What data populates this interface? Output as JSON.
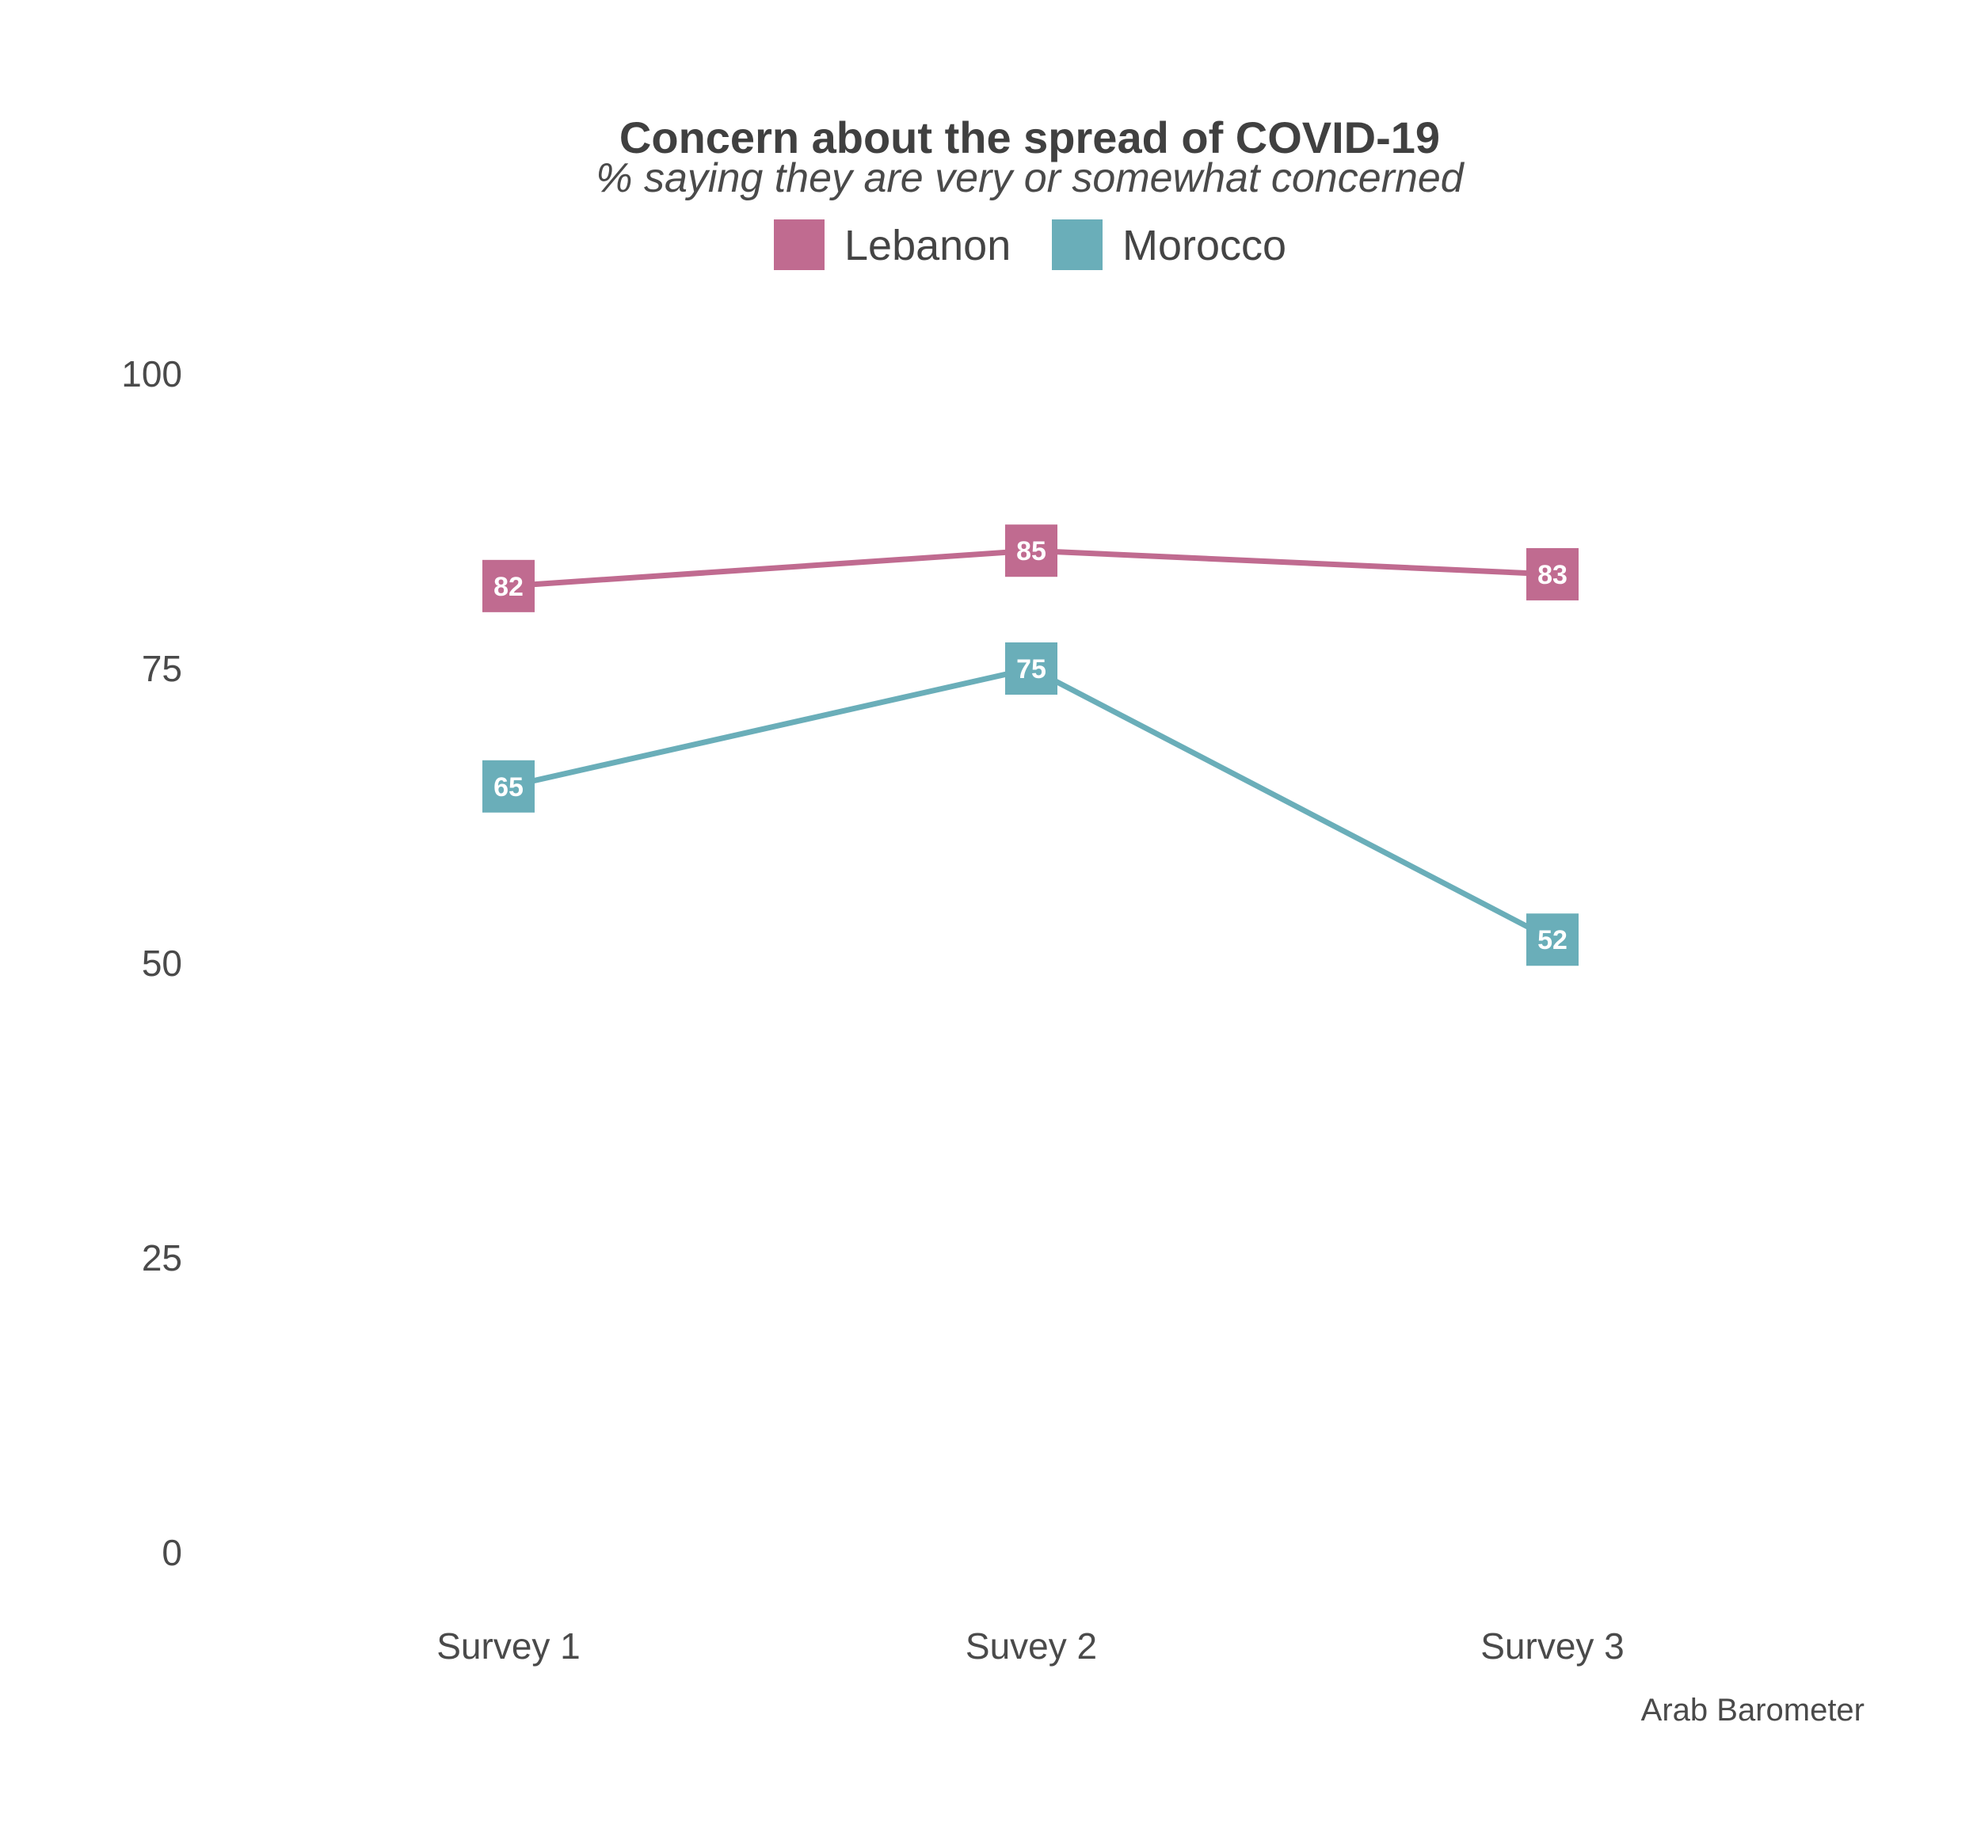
{
  "chart_data": {
    "type": "line",
    "title": "Concern about the spread of COVID-19",
    "subtitle": "% saying they are very or somewhat concerned",
    "categories": [
      "Survey 1",
      "Suvey 2",
      "Survey 3"
    ],
    "series": [
      {
        "name": "Lebanon",
        "color": "#c06b90",
        "values": [
          82,
          85,
          83
        ]
      },
      {
        "name": "Morocco",
        "color": "#6aaeb9",
        "values": [
          65,
          75,
          52
        ]
      }
    ],
    "y_ticks": [
      0,
      25,
      50,
      75,
      100
    ],
    "ylim": [
      0,
      100
    ],
    "xlabel": "",
    "ylabel": "",
    "grid": false,
    "legend_position": "top",
    "caption": "Arab Barometer"
  }
}
